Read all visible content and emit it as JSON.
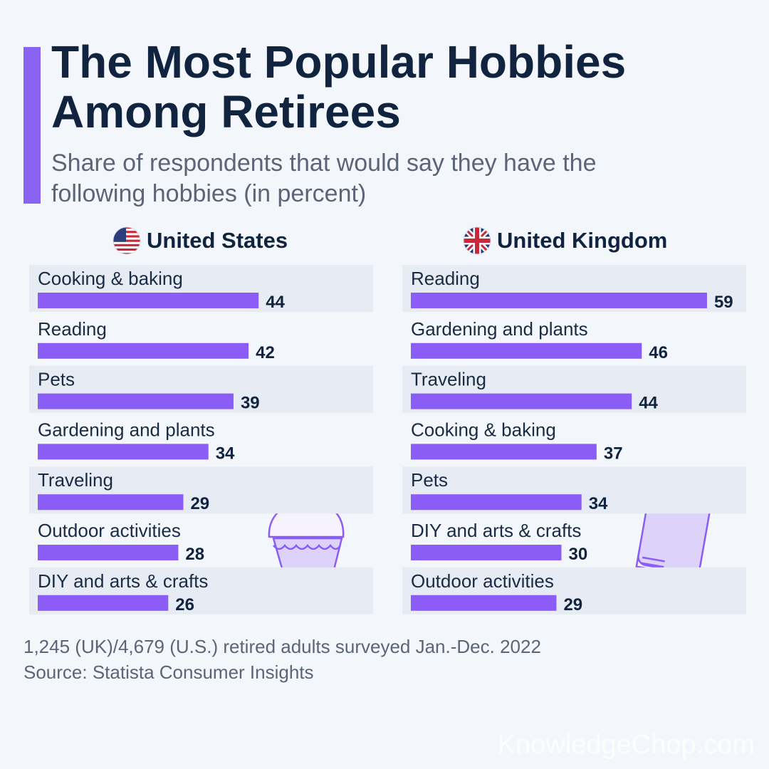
{
  "header": {
    "title": "The Most Popular Hobbies Among Retirees",
    "subtitle": "Share of respondents that would say they have the following hobbies (in percent)"
  },
  "panels": {
    "us": {
      "name": "United States",
      "flag_icon": "us-flag-icon"
    },
    "uk": {
      "name": "United Kingdom",
      "flag_icon": "uk-flag-icon"
    }
  },
  "chart_data": [
    {
      "type": "bar",
      "orientation": "horizontal",
      "title": "United States",
      "categories": [
        "Cooking & baking",
        "Reading",
        "Pets",
        "Gardening and plants",
        "Traveling",
        "Outdoor activities",
        "DIY and arts & crafts"
      ],
      "values": [
        44,
        42,
        39,
        34,
        29,
        28,
        26
      ],
      "bar_color": "#8b5cf6",
      "row_stripe": true
    },
    {
      "type": "bar",
      "orientation": "horizontal",
      "title": "United Kingdom",
      "categories": [
        "Reading",
        "Gardening and plants",
        "Traveling",
        "Cooking & baking",
        "Pets",
        "DIY and arts & crafts",
        "Outdoor activities"
      ],
      "values": [
        59,
        46,
        44,
        37,
        34,
        30,
        29
      ],
      "bar_color": "#8b5cf6",
      "row_stripe": true
    }
  ],
  "footer": {
    "survey_note": "1,245 (UK)/4,679 (U.S.) retired adults surveyed Jan.-Dec. 2022",
    "source": "Source: Statista Consumer Insights"
  },
  "watermark": "KnowledgeChop.com",
  "decorations": {
    "us": "cupcake-illustration",
    "uk": "book-illustration"
  },
  "colors": {
    "accent": "#8a63f0",
    "bar": "#8b5cf6",
    "title": "#10233f",
    "muted": "#5b6577",
    "stripe": "#e7ebf3"
  }
}
